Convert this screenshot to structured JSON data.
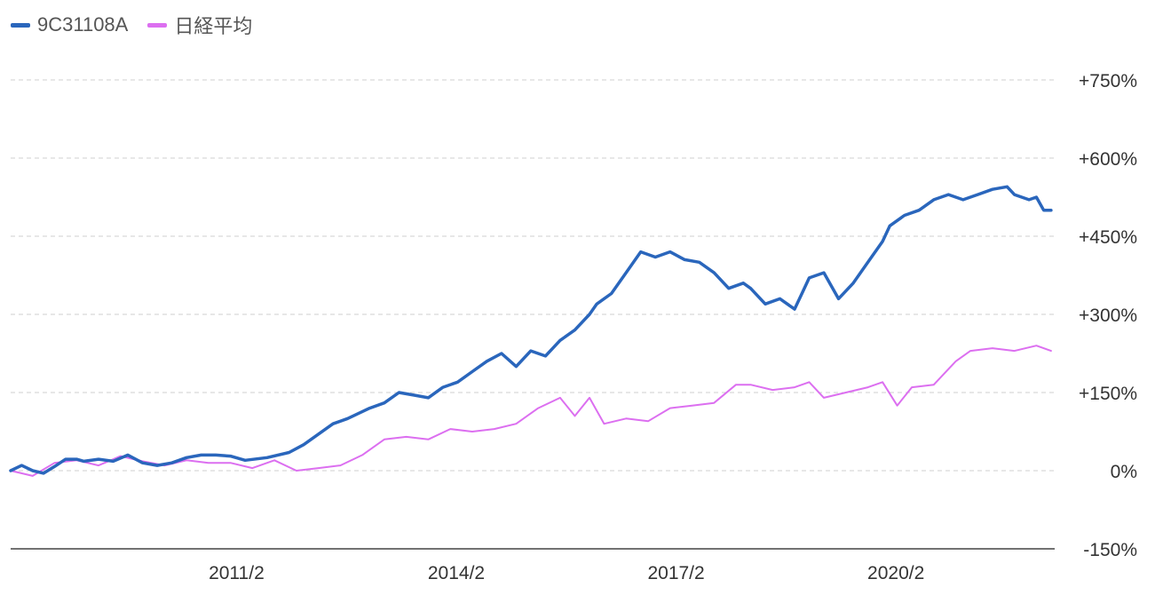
{
  "chart_data": {
    "type": "line",
    "title": "",
    "xlabel": "",
    "ylabel": "",
    "ylim": [
      -150,
      750
    ],
    "xlim": [
      2008.0,
      2022.25
    ],
    "y_ticks": [
      -150,
      0,
      150,
      300,
      450,
      600,
      750
    ],
    "y_tick_labels": [
      "-150%",
      "0%",
      "+150%",
      "+300%",
      "+450%",
      "+600%",
      "+750%"
    ],
    "x_ticks": [
      2011.083,
      2014.083,
      2017.083,
      2020.083
    ],
    "x_tick_labels": [
      "2011/2",
      "2014/2",
      "2017/2",
      "2020/2"
    ],
    "grid": true,
    "legend_position": "top-left",
    "series": [
      {
        "name": "9C31108A",
        "color": "#2a66bc",
        "x": [
          2008.0,
          2008.15,
          2008.3,
          2008.45,
          2008.6,
          2008.75,
          2008.9,
          2009.0,
          2009.2,
          2009.4,
          2009.6,
          2009.8,
          2010.0,
          2010.2,
          2010.4,
          2010.6,
          2010.8,
          2011.0,
          2011.2,
          2011.5,
          2011.8,
          2012.0,
          2012.2,
          2012.4,
          2012.6,
          2012.9,
          2013.1,
          2013.3,
          2013.5,
          2013.7,
          2013.9,
          2014.1,
          2014.3,
          2014.5,
          2014.7,
          2014.9,
          2015.1,
          2015.3,
          2015.5,
          2015.7,
          2015.9,
          2016.0,
          2016.2,
          2016.4,
          2016.6,
          2016.8,
          2017.0,
          2017.2,
          2017.4,
          2017.6,
          2017.8,
          2018.0,
          2018.1,
          2018.3,
          2018.5,
          2018.7,
          2018.8,
          2018.9,
          2019.1,
          2019.3,
          2019.5,
          2019.7,
          2019.9,
          2020.0,
          2020.2,
          2020.4,
          2020.6,
          2020.8,
          2021.0,
          2021.2,
          2021.4,
          2021.6,
          2021.7,
          2021.9,
          2022.0,
          2022.1,
          2022.2
        ],
        "y": [
          0,
          10,
          0,
          -5,
          8,
          22,
          22,
          18,
          22,
          18,
          30,
          15,
          10,
          15,
          25,
          30,
          30,
          28,
          20,
          25,
          35,
          50,
          70,
          90,
          100,
          120,
          130,
          150,
          145,
          140,
          160,
          170,
          190,
          210,
          225,
          200,
          230,
          220,
          250,
          270,
          300,
          320,
          340,
          380,
          420,
          410,
          420,
          405,
          400,
          380,
          350,
          360,
          350,
          320,
          330,
          310,
          340,
          370,
          380,
          330,
          360,
          400,
          440,
          470,
          490,
          500,
          520,
          530,
          520,
          530,
          540,
          545,
          530,
          520,
          525,
          500,
          500
        ],
        "values_note": ""
      },
      {
        "name": "日経平均",
        "color": "#dc6ff0",
        "x": [
          2008.0,
          2008.3,
          2008.6,
          2008.9,
          2009.2,
          2009.5,
          2009.8,
          2010.1,
          2010.4,
          2010.7,
          2011.0,
          2011.3,
          2011.6,
          2011.9,
          2012.2,
          2012.5,
          2012.8,
          2013.1,
          2013.4,
          2013.7,
          2014.0,
          2014.3,
          2014.6,
          2014.9,
          2015.2,
          2015.5,
          2015.7,
          2015.9,
          2016.1,
          2016.4,
          2016.7,
          2017.0,
          2017.3,
          2017.6,
          2017.9,
          2018.1,
          2018.4,
          2018.7,
          2018.9,
          2019.1,
          2019.4,
          2019.7,
          2019.9,
          2020.1,
          2020.3,
          2020.6,
          2020.9,
          2021.1,
          2021.4,
          2021.7,
          2022.0,
          2022.2
        ],
        "y": [
          0,
          -10,
          15,
          20,
          10,
          28,
          18,
          10,
          20,
          15,
          15,
          5,
          20,
          0,
          5,
          10,
          30,
          60,
          65,
          60,
          80,
          75,
          80,
          90,
          120,
          140,
          105,
          140,
          90,
          100,
          95,
          120,
          125,
          130,
          165,
          165,
          155,
          160,
          170,
          140,
          150,
          160,
          170,
          125,
          160,
          165,
          210,
          230,
          235,
          230,
          240,
          230
        ]
      }
    ]
  }
}
